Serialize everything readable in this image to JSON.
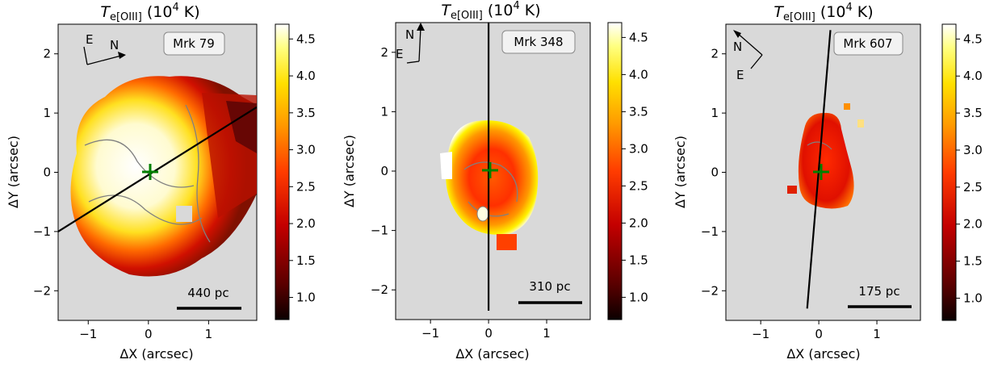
{
  "chart_data": [
    {
      "type": "heatmap",
      "title_main": "T",
      "title_sub": "e[OIII]",
      "title_unit": "(10",
      "title_exp": "4",
      "title_tail": " K)",
      "object": "Mrk 79",
      "scalebar": "440 pc",
      "xlabel": "ΔX (arcsec)",
      "ylabel": "ΔY (arcsec)",
      "xlim": [
        -1.5,
        1.8
      ],
      "ylim": [
        -2.5,
        2.5
      ],
      "xticks": [
        "−1",
        "0",
        "1"
      ],
      "xtick_values": [
        -1,
        0,
        1
      ],
      "yticks": [
        "−2",
        "−1",
        "0",
        "1",
        "2"
      ],
      "ytick_values": [
        -2,
        -1,
        0,
        1,
        2
      ],
      "colorbar_ticks": [
        "1.0",
        "1.5",
        "2.0",
        "2.5",
        "3.0",
        "3.5",
        "4.0",
        "4.5"
      ],
      "colorbar_tick_values": [
        1.0,
        1.5,
        2.0,
        2.5,
        3.0,
        3.5,
        4.0,
        4.5
      ],
      "colorbar_range": [
        0.7,
        4.7
      ],
      "slit_line": [
        [
          -1.5,
          -1.0
        ],
        [
          1.8,
          1.1
        ]
      ],
      "compass_labels": [
        "E",
        "N"
      ],
      "center_marker": [
        0,
        0
      ]
    },
    {
      "type": "heatmap",
      "title_main": "T",
      "title_sub": "e[OIII]",
      "title_unit": "(10",
      "title_exp": "4",
      "title_tail": " K)",
      "object": "Mrk 348",
      "scalebar": "310 pc",
      "xlabel": "ΔX (arcsec)",
      "ylabel": "ΔY (arcsec)",
      "xlim": [
        -1.6,
        1.75
      ],
      "ylim": [
        -2.5,
        2.5
      ],
      "xticks": [
        "−1",
        "0",
        "1"
      ],
      "xtick_values": [
        -1,
        0,
        1
      ],
      "yticks": [
        "−2",
        "−1",
        "0",
        "1",
        "2"
      ],
      "ytick_values": [
        -2,
        -1,
        0,
        1,
        2
      ],
      "colorbar_ticks": [
        "1.0",
        "1.5",
        "2.0",
        "2.5",
        "3.0",
        "3.5",
        "4.0",
        "4.5"
      ],
      "colorbar_tick_values": [
        1.0,
        1.5,
        2.0,
        2.5,
        3.0,
        3.5,
        4.0,
        4.5
      ],
      "colorbar_range": [
        0.7,
        4.7
      ],
      "slit_line": [
        [
          0,
          -2.35
        ],
        [
          0,
          2.5
        ]
      ],
      "compass_labels": [
        "N",
        "E"
      ],
      "center_marker": [
        0,
        0
      ]
    },
    {
      "type": "heatmap",
      "title_main": "T",
      "title_sub": "e[OIII]",
      "title_unit": "(10",
      "title_exp": "4",
      "title_tail": " K)",
      "object": "Mrk 607",
      "scalebar": "175 pc",
      "xlabel": "ΔX (arcsec)",
      "ylabel": "ΔY (arcsec)",
      "xlim": [
        -1.6,
        1.75
      ],
      "ylim": [
        -2.5,
        2.5
      ],
      "xticks": [
        "−1",
        "0",
        "1"
      ],
      "xtick_values": [
        -1,
        0,
        1
      ],
      "yticks": [
        "−2",
        "−1",
        "0",
        "1",
        "2"
      ],
      "ytick_values": [
        -2,
        -1,
        0,
        1,
        2
      ],
      "colorbar_ticks": [
        "1.0",
        "1.5",
        "2.0",
        "2.5",
        "3.0",
        "3.5",
        "4.0",
        "4.5"
      ],
      "colorbar_tick_values": [
        1.0,
        1.5,
        2.0,
        2.5,
        3.0,
        3.5,
        4.0,
        4.5
      ],
      "colorbar_range": [
        0.7,
        4.7
      ],
      "slit_line": [
        [
          -0.2,
          -2.3
        ],
        [
          0.2,
          2.4
        ]
      ],
      "compass_labels": [
        "N",
        "E"
      ],
      "center_marker": [
        0,
        0
      ]
    }
  ]
}
